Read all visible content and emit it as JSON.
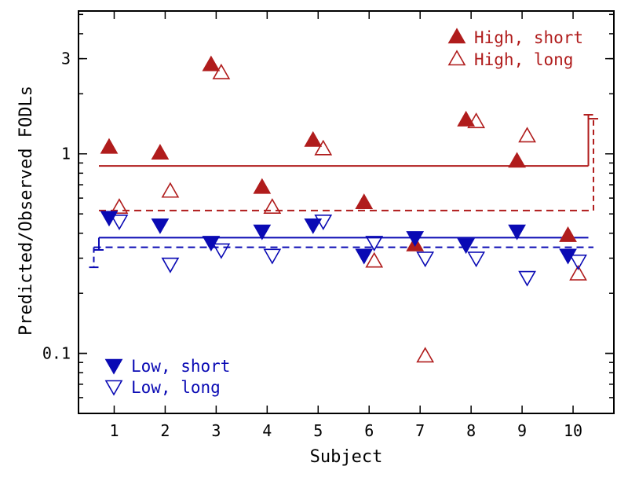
{
  "chart_data": {
    "type": "scatter",
    "xlabel": "Subject",
    "ylabel": "Predicted/Observed FODLs",
    "x_scale": "linear",
    "y_scale": "log",
    "xlim": [
      0.3,
      10.8
    ],
    "ylim": [
      0.05,
      5.2
    ],
    "x_ticks": [
      1,
      2,
      3,
      4,
      5,
      6,
      7,
      8,
      9,
      10
    ],
    "x_tick_labels": [
      "1",
      "2",
      "3",
      "4",
      "5",
      "6",
      "7",
      "8",
      "9",
      "10"
    ],
    "y_ticks": [
      0.1,
      1,
      3
    ],
    "y_tick_labels": [
      "0.1",
      "1",
      "3"
    ],
    "legend_location": "top-right and bottom-left",
    "colors": {
      "high": "#b01c1c",
      "low": "#0a0ab4",
      "axes": "#000000"
    },
    "series": [
      {
        "name": "High, short",
        "marker": "triangle-up-filled",
        "color": "#b01c1c",
        "x": [
          0.9,
          1.9,
          2.9,
          3.9,
          4.9,
          5.9,
          6.9,
          7.9,
          8.9,
          9.9
        ],
        "y": [
          1.08,
          1.01,
          2.8,
          0.68,
          1.17,
          0.57,
          0.35,
          1.48,
          0.92,
          0.39
        ]
      },
      {
        "name": "High, long",
        "marker": "triangle-up-open",
        "color": "#b01c1c",
        "x": [
          1.1,
          2.1,
          3.1,
          4.1,
          5.1,
          6.1,
          7.1,
          8.1,
          9.1,
          10.1
        ],
        "y": [
          0.54,
          0.65,
          2.55,
          0.54,
          1.06,
          0.29,
          0.097,
          1.45,
          1.23,
          0.25
        ]
      },
      {
        "name": "Low, short",
        "marker": "triangle-down-filled",
        "color": "#0a0ab4",
        "x": [
          0.9,
          1.9,
          2.9,
          3.9,
          4.9,
          5.9,
          6.9,
          7.9,
          8.9,
          9.9
        ],
        "y": [
          0.48,
          0.44,
          0.36,
          0.41,
          0.44,
          0.31,
          0.38,
          0.35,
          0.41,
          0.31
        ]
      },
      {
        "name": "Low, long",
        "marker": "triangle-down-open",
        "color": "#0a0ab4",
        "x": [
          1.1,
          2.1,
          3.1,
          4.1,
          5.1,
          6.1,
          7.1,
          8.1,
          9.1,
          10.1
        ],
        "y": [
          0.46,
          0.28,
          0.33,
          0.31,
          0.46,
          0.36,
          0.3,
          0.3,
          0.24,
          0.29
        ]
      }
    ],
    "reference_lines": [
      {
        "style": "solid",
        "color": "#b01c1c",
        "y": 0.87,
        "x_range": [
          0.7,
          10.3
        ],
        "error_bar": {
          "x": 10.3,
          "from": 0.87,
          "to": 1.57
        }
      },
      {
        "style": "dashed",
        "color": "#b01c1c",
        "y": 0.52,
        "x_range": [
          0.7,
          10.4
        ],
        "error_bar": {
          "x": 10.4,
          "from": 0.52,
          "to": 1.5
        }
      },
      {
        "style": "solid",
        "color": "#0a0ab4",
        "y": 0.38,
        "x_range": [
          0.7,
          10.3
        ],
        "error_bar": {
          "x": 0.7,
          "from": 0.38,
          "to": 0.33
        }
      },
      {
        "style": "dashed",
        "color": "#0a0ab4",
        "y": 0.34,
        "x_range": [
          0.6,
          10.4
        ],
        "error_bar": {
          "x": 0.6,
          "from": 0.34,
          "to": 0.27
        }
      }
    ]
  }
}
